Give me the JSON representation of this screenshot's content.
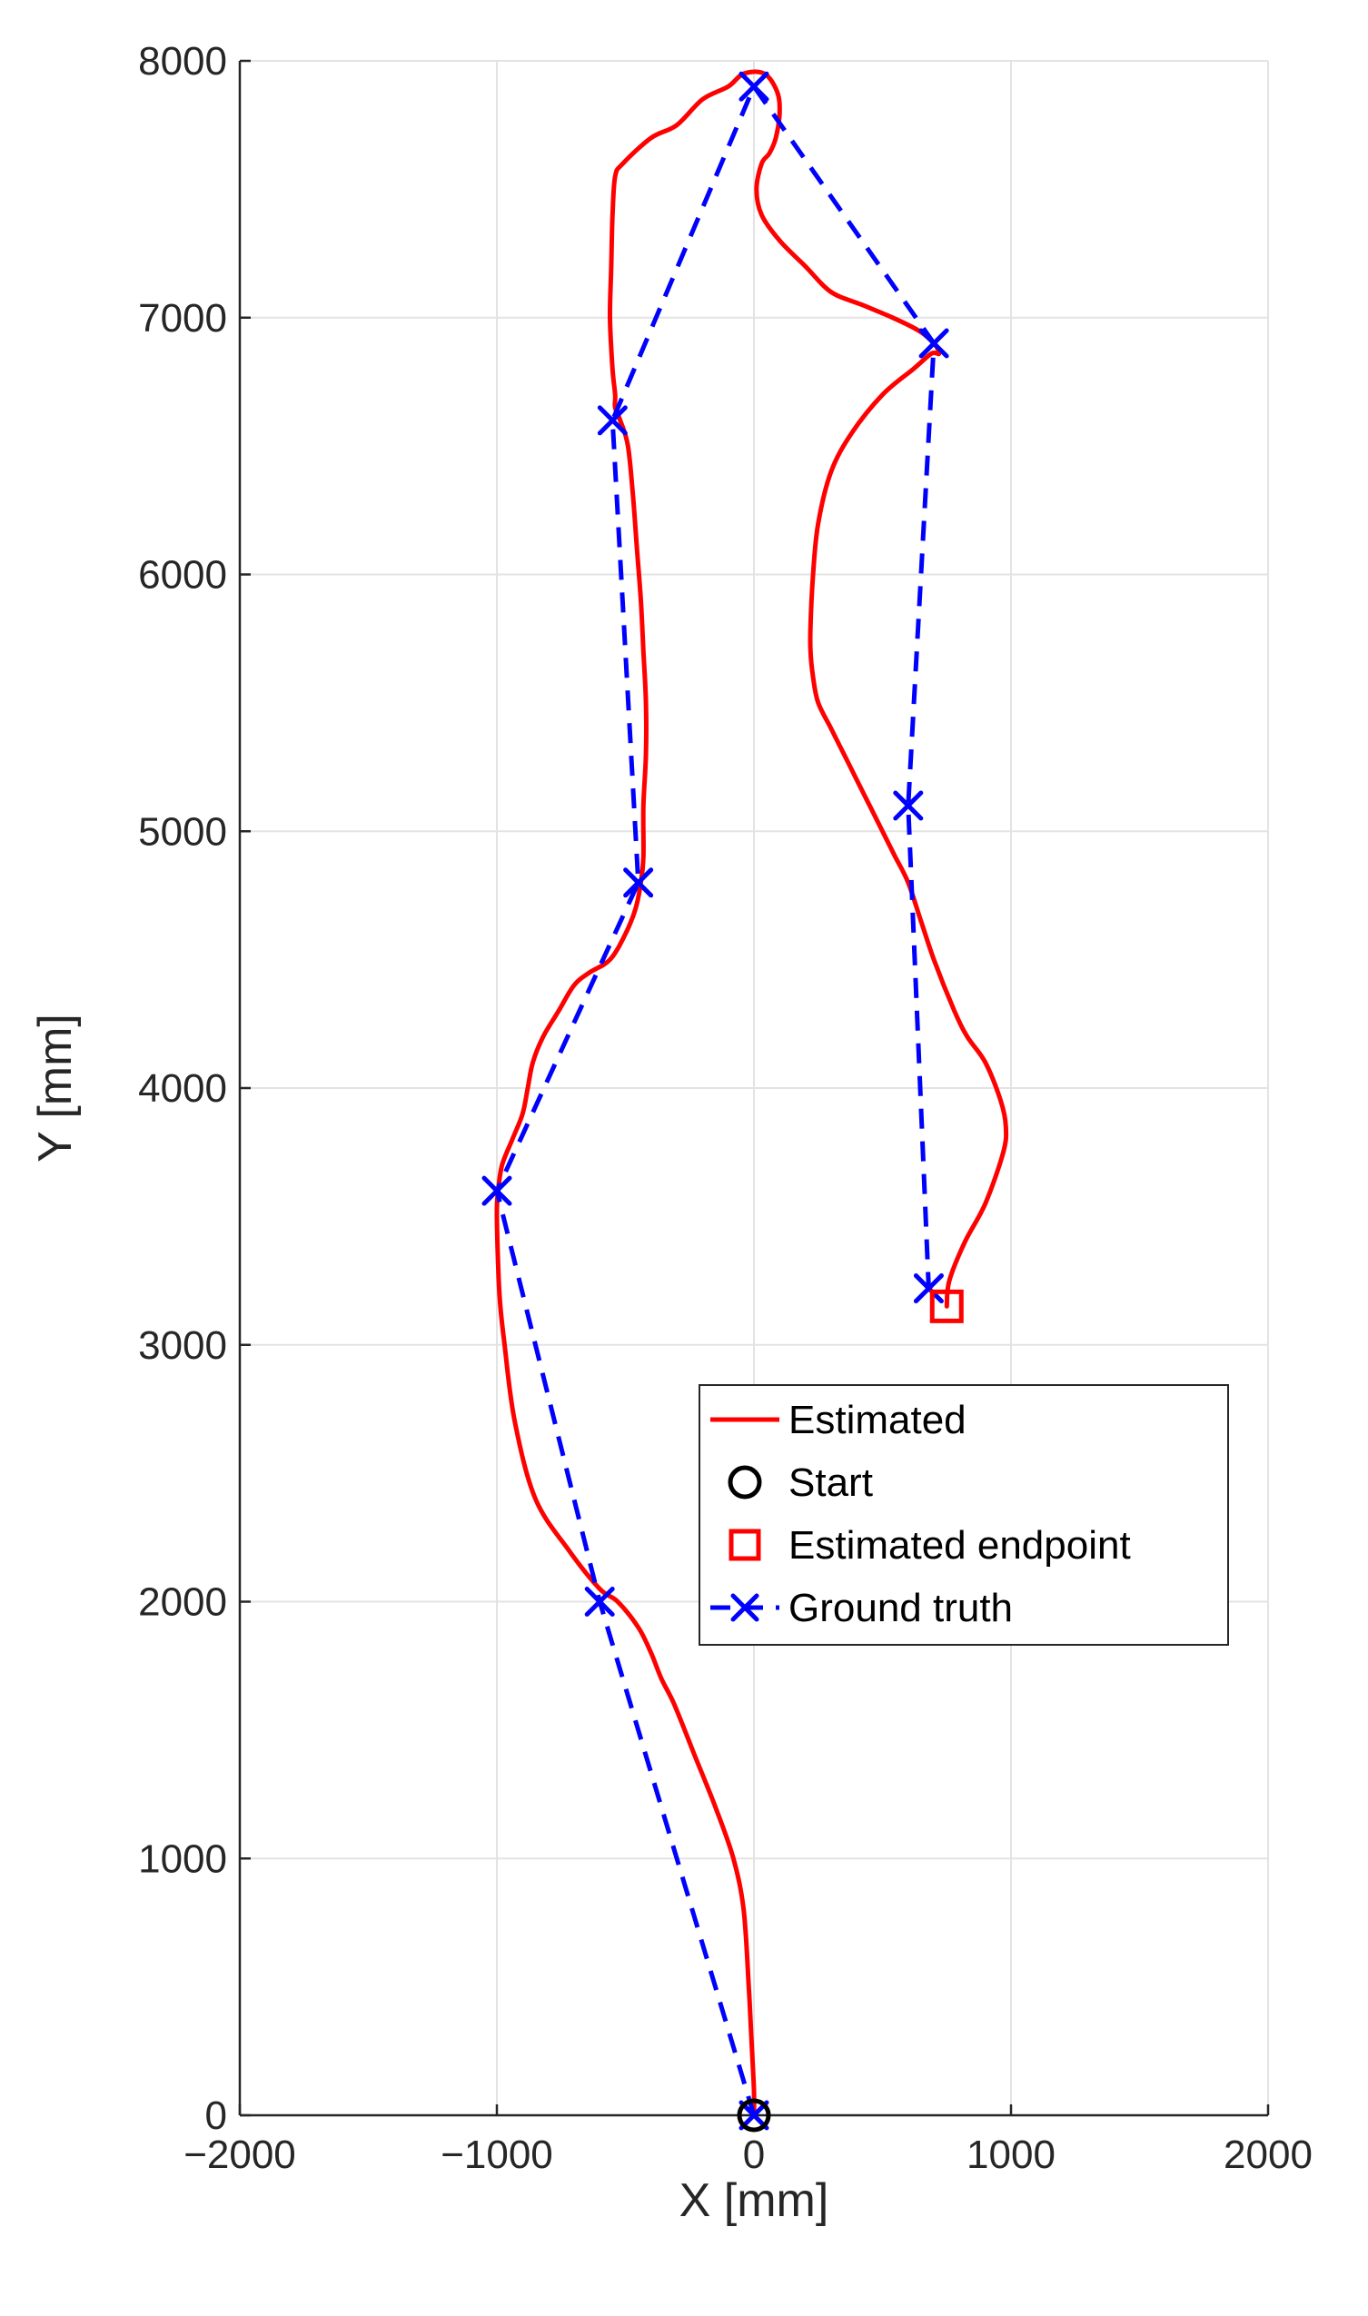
{
  "chart_data": {
    "type": "line",
    "title": "",
    "xlabel": "X [mm]",
    "ylabel": "Y [mm]",
    "xlim": [
      -2000,
      2000
    ],
    "ylim": [
      0,
      8000
    ],
    "x_ticks": [
      -2000,
      -1000,
      0,
      1000,
      2000
    ],
    "y_ticks": [
      0,
      1000,
      2000,
      3000,
      4000,
      5000,
      6000,
      7000,
      8000
    ],
    "x_tick_labels": [
      "−2000",
      "−1000",
      "0",
      "1000",
      "2000"
    ],
    "y_tick_labels": [
      "0",
      "1000",
      "2000",
      "3000",
      "4000",
      "5000",
      "6000",
      "7000",
      "8000"
    ],
    "grid": true,
    "legend_position": "bottom-right",
    "colors": {
      "estimated": "#ff0000",
      "start": "#000000",
      "endpoint": "#ff0000",
      "ground_truth": "#0000ff"
    },
    "series": [
      {
        "name": "Estimated",
        "style": "solid",
        "x": [
          0,
          0,
          -10,
          -20,
          -40,
          -80,
          -150,
          -230,
          -310,
          -360,
          -400,
          -450,
          -530,
          -600,
          -720,
          -850,
          -930,
          -970,
          -990,
          -1000,
          -995,
          -980,
          -940,
          -900,
          -880,
          -860,
          -820,
          -760,
          -700,
          -640,
          -560,
          -500,
          -460,
          -440,
          -430,
          -430,
          -420,
          -420,
          -430,
          -440,
          -455,
          -470,
          -490,
          -520,
          -540,
          -540,
          -550,
          -560,
          -555,
          -550,
          -540,
          -510,
          -400,
          -300,
          -200,
          -100,
          -40,
          40,
          90,
          100,
          85,
          60,
          30,
          10,
          30,
          100,
          200,
          300,
          420,
          540,
          640,
          700,
          720,
          690,
          620,
          500,
          380,
          300,
          250,
          230,
          220,
          220,
          230,
          250,
          300,
          350,
          400,
          450,
          500,
          550,
          600,
          650,
          700,
          780,
          830,
          900,
          960,
          980,
          970,
          900,
          820,
          760,
          750
        ],
        "y": [
          0,
          100,
          300,
          500,
          800,
          1000,
          1200,
          1400,
          1600,
          1700,
          1800,
          1900,
          2000,
          2050,
          2200,
          2400,
          2700,
          3000,
          3200,
          3500,
          3600,
          3700,
          3800,
          3900,
          4000,
          4100,
          4200,
          4300,
          4400,
          4450,
          4500,
          4600,
          4700,
          4800,
          4900,
          5100,
          5300,
          5500,
          5700,
          5900,
          6100,
          6300,
          6500,
          6600,
          6650,
          6700,
          6800,
          7000,
          7200,
          7400,
          7550,
          7600,
          7700,
          7750,
          7850,
          7900,
          7950,
          7950,
          7880,
          7800,
          7700,
          7640,
          7600,
          7500,
          7400,
          7300,
          7200,
          7100,
          7050,
          7000,
          6950,
          6900,
          6860,
          6860,
          6800,
          6700,
          6550,
          6400,
          6200,
          6000,
          5800,
          5700,
          5600,
          5500,
          5400,
          5300,
          5200,
          5100,
          5000,
          4900,
          4800,
          4650,
          4500,
          4300,
          4200,
          4100,
          3950,
          3850,
          3750,
          3550,
          3400,
          3250,
          3150
        ]
      },
      {
        "name": "Ground truth",
        "style": "dashed",
        "marker": "x",
        "x": [
          0,
          -600,
          -1000,
          -450,
          -550,
          0,
          700,
          600,
          680
        ],
        "y": [
          0,
          2000,
          3600,
          4800,
          6600,
          7900,
          6900,
          5100,
          3220
        ]
      }
    ],
    "markers": [
      {
        "name": "Start",
        "shape": "circle",
        "x": 0,
        "y": 0
      },
      {
        "name": "Estimated endpoint",
        "shape": "square",
        "x": 750,
        "y": 3150
      }
    ]
  }
}
